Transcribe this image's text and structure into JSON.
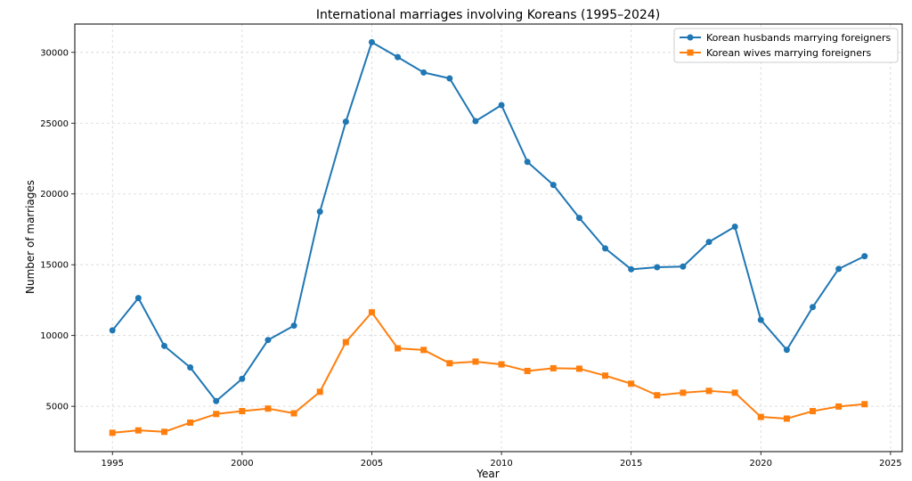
{
  "chart_data": {
    "type": "line",
    "title": "International marriages involving Koreans (1995–2024)",
    "xlabel": "Year",
    "ylabel": "Number of marriages",
    "xlim": [
      1993.55,
      2025.45
    ],
    "ylim": [
      1800,
      32000
    ],
    "x_ticks": [
      1995,
      2000,
      2005,
      2010,
      2015,
      2020,
      2025
    ],
    "y_ticks": [
      5000,
      10000,
      15000,
      20000,
      25000,
      30000
    ],
    "grid": true,
    "legend_position": "top-right",
    "x": [
      1995,
      1996,
      1997,
      1998,
      1999,
      2000,
      2001,
      2002,
      2003,
      2004,
      2005,
      2006,
      2007,
      2008,
      2009,
      2010,
      2011,
      2012,
      2013,
      2014,
      2015,
      2016,
      2017,
      2018,
      2019,
      2020,
      2021,
      2022,
      2023,
      2024
    ],
    "series": [
      {
        "name": "Korean husbands marrying foreigners",
        "color": "#1f77b4",
        "marker": "circle",
        "values": [
          10365,
          12647,
          9266,
          7745,
          5370,
          6945,
          9684,
          10698,
          18750,
          25105,
          30719,
          29665,
          28580,
          28163,
          25142,
          26274,
          22265,
          20637,
          18307,
          16152,
          14677,
          14822,
          14869,
          16608,
          17687,
          11100,
          8987,
          12007,
          14706,
          15600
        ]
      },
      {
        "name": "Korean wives marrying foreigners",
        "color": "#ff7f0e",
        "marker": "square",
        "values": [
          3129,
          3299,
          3196,
          3847,
          4457,
          4660,
          4839,
          4504,
          6025,
          9535,
          11637,
          9094,
          8980,
          8041,
          8158,
          7961,
          7497,
          7688,
          7656,
          7166,
          6597,
          5780,
          5959,
          6090,
          5958,
          4250,
          4131,
          4659,
          4985,
          5150
        ]
      }
    ]
  }
}
